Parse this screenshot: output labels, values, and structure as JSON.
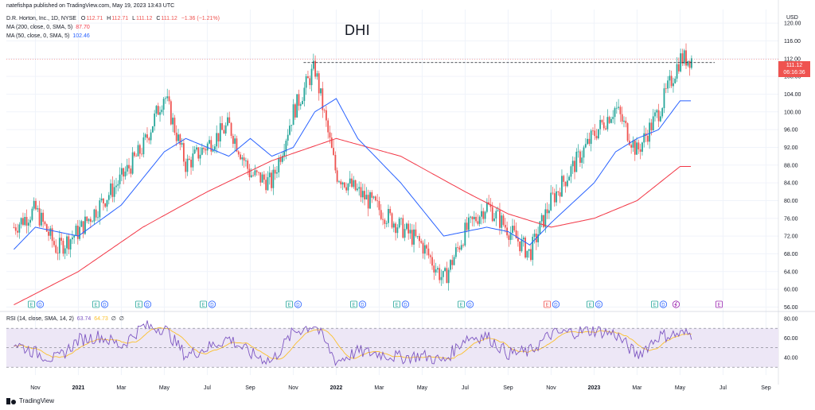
{
  "header": {
    "publisher": "natefishpa published on TradingView.com, May 19, 2023 13:43 UTC",
    "symbol_line": "D.R. Horton, Inc., 1D, NYSE",
    "ohlc": {
      "o_label": "O",
      "o": "112.71",
      "h_label": "H",
      "h": "112.71",
      "l_label": "L",
      "l": "111.12",
      "c_label": "C",
      "c": "111.12",
      "change": "−1.36 (−1.21%)"
    },
    "ma200_label": "MA (200, close, 0, SMA, 5)",
    "ma200_value": "87.70",
    "ma50_label": "MA (50, close, 0, SMA, 5)",
    "ma50_value": "102.46"
  },
  "title": "DHI",
  "price_tag": {
    "price": "111.12",
    "countdown": "06:16:36"
  },
  "rsi": {
    "label": "RSI (14, close, SMA, 14, 2)",
    "value": "63.74",
    "ma_value": "64.73",
    "extra1": "∅",
    "extra2": "∅"
  },
  "footer": {
    "brand": "TradingView"
  },
  "colors": {
    "up": "#26a69a",
    "down": "#ef5350",
    "ma200": "#f23645",
    "ma50": "#2962ff",
    "rsi_line": "#7e57c2",
    "rsi_ma": "#fbc02d",
    "rsi_band": "#ede7f6",
    "dividend": "#2962ff",
    "earnings_hist": "#26a69a",
    "earnings_future": "#ef5350",
    "split": "#9c27b0"
  },
  "chart_data": {
    "type": "candlestick",
    "price_axis": {
      "currency": "USD",
      "ticks": [
        56.0,
        60.0,
        64.0,
        68.0,
        72.0,
        76.0,
        80.0,
        84.0,
        88.0,
        92.0,
        96.0,
        100.0,
        104.0,
        108.0,
        112.0,
        116.0,
        120.0
      ],
      "range": [
        55,
        122
      ]
    },
    "time_axis": {
      "labels": [
        "Nov",
        "2021",
        "Mar",
        "May",
        "Jul",
        "Sep",
        "Nov",
        "2022",
        "Mar",
        "May",
        "Jul",
        "Sep",
        "Nov",
        "2023",
        "Mar",
        "May",
        "Jul",
        "Sep"
      ]
    },
    "resistance_level": 111.12,
    "price_path": [
      {
        "date": "Oct 2020",
        "price": 74
      },
      {
        "date": "Nov 2020",
        "price": 78
      },
      {
        "date": "Dec 2020",
        "price": 69
      },
      {
        "date": "Jan 2021",
        "price": 73
      },
      {
        "date": "Mar 2021",
        "price": 85
      },
      {
        "date": "Apr 2021",
        "price": 92
      },
      {
        "date": "May 2021",
        "price": 104
      },
      {
        "date": "Jun 2021",
        "price": 88
      },
      {
        "date": "Aug 2021",
        "price": 97
      },
      {
        "date": "Sep 2021",
        "price": 86
      },
      {
        "date": "Oct 2021",
        "price": 84
      },
      {
        "date": "Nov 2021",
        "price": 100
      },
      {
        "date": "Dec 2021",
        "price": 110
      },
      {
        "date": "Jan 2022",
        "price": 86
      },
      {
        "date": "Mar 2022",
        "price": 78
      },
      {
        "date": "May 2022",
        "price": 70
      },
      {
        "date": "Jun 2022",
        "price": 62
      },
      {
        "date": "Jul 2022",
        "price": 73
      },
      {
        "date": "Aug 2022",
        "price": 79
      },
      {
        "date": "Oct 2022",
        "price": 68
      },
      {
        "date": "Nov 2022",
        "price": 80
      },
      {
        "date": "Jan 2023",
        "price": 95
      },
      {
        "date": "Feb 2023",
        "price": 101
      },
      {
        "date": "Mar 2023",
        "price": 91
      },
      {
        "date": "Apr 2023",
        "price": 100
      },
      {
        "date": "May 2023",
        "price": 112
      }
    ],
    "ma200_path": [
      {
        "date": "Oct 2020",
        "value": 56.5
      },
      {
        "date": "Jan 2021",
        "value": 64
      },
      {
        "date": "Apr 2021",
        "value": 74
      },
      {
        "date": "Jul 2021",
        "value": 82
      },
      {
        "date": "Oct 2021",
        "value": 89
      },
      {
        "date": "Jan 2022",
        "value": 94
      },
      {
        "date": "Apr 2022",
        "value": 90
      },
      {
        "date": "Jul 2022",
        "value": 82
      },
      {
        "date": "Sep 2022",
        "value": 77
      },
      {
        "date": "Nov 2022",
        "value": 74
      },
      {
        "date": "Jan 2023",
        "value": 76
      },
      {
        "date": "Mar 2023",
        "value": 80
      },
      {
        "date": "May 2023",
        "value": 87.7
      }
    ],
    "ma50_path": [
      {
        "date": "Oct 2020",
        "value": 69
      },
      {
        "date": "Nov 2020",
        "value": 74
      },
      {
        "date": "Jan 2021",
        "value": 72
      },
      {
        "date": "Mar 2021",
        "value": 79
      },
      {
        "date": "May 2021",
        "value": 91
      },
      {
        "date": "Jun 2021",
        "value": 94
      },
      {
        "date": "Aug 2021",
        "value": 90
      },
      {
        "date": "Sep 2021",
        "value": 94
      },
      {
        "date": "Oct 2021",
        "value": 90
      },
      {
        "date": "Nov 2021",
        "value": 92
      },
      {
        "date": "Dec 2021",
        "value": 100
      },
      {
        "date": "Jan 2022",
        "value": 103
      },
      {
        "date": "Feb 2022",
        "value": 94
      },
      {
        "date": "Apr 2022",
        "value": 84
      },
      {
        "date": "May 2022",
        "value": 78
      },
      {
        "date": "Jun 2022",
        "value": 72
      },
      {
        "date": "Aug 2022",
        "value": 74
      },
      {
        "date": "Sep 2022",
        "value": 73
      },
      {
        "date": "Oct 2022",
        "value": 70
      },
      {
        "date": "Nov 2022",
        "value": 75
      },
      {
        "date": "Jan 2023",
        "value": 84
      },
      {
        "date": "Feb 2023",
        "value": 91
      },
      {
        "date": "Mar 2023",
        "value": 94
      },
      {
        "date": "Apr 2023",
        "value": 96
      },
      {
        "date": "May 2023",
        "value": 102.5
      }
    ],
    "rsi_axis": {
      "ticks": [
        40.0,
        60.0,
        80.0
      ],
      "upper_band": 70,
      "middle": 50,
      "lower_band": 30
    },
    "rsi_path": [
      {
        "date": "Oct 2020",
        "value": 55
      },
      {
        "date": "Nov 2020",
        "value": 45
      },
      {
        "date": "Dec 2020",
        "value": 38
      },
      {
        "date": "Jan 2021",
        "value": 58
      },
      {
        "date": "Feb 2021",
        "value": 62
      },
      {
        "date": "Mar 2021",
        "value": 52
      },
      {
        "date": "Apr 2021",
        "value": 72
      },
      {
        "date": "May 2021",
        "value": 70
      },
      {
        "date": "Jun 2021",
        "value": 42
      },
      {
        "date": "Jul 2021",
        "value": 50
      },
      {
        "date": "Aug 2021",
        "value": 60
      },
      {
        "date": "Sep 2021",
        "value": 44
      },
      {
        "date": "Oct 2021",
        "value": 36
      },
      {
        "date": "Nov 2021",
        "value": 66
      },
      {
        "date": "Dec 2021",
        "value": 74
      },
      {
        "date": "Jan 2022",
        "value": 36
      },
      {
        "date": "Feb 2022",
        "value": 46
      },
      {
        "date": "Mar 2022",
        "value": 44
      },
      {
        "date": "Apr 2022",
        "value": 40
      },
      {
        "date": "May 2022",
        "value": 42
      },
      {
        "date": "Jun 2022",
        "value": 36
      },
      {
        "date": "Jul 2022",
        "value": 60
      },
      {
        "date": "Aug 2022",
        "value": 62
      },
      {
        "date": "Sep 2022",
        "value": 44
      },
      {
        "date": "Oct 2022",
        "value": 46
      },
      {
        "date": "Nov 2022",
        "value": 64
      },
      {
        "date": "Dec 2022",
        "value": 66
      },
      {
        "date": "Jan 2023",
        "value": 68
      },
      {
        "date": "Feb 2023",
        "value": 64
      },
      {
        "date": "Mar 2023",
        "value": 42
      },
      {
        "date": "Apr 2023",
        "value": 62
      },
      {
        "date": "May 2023",
        "value": 64
      }
    ],
    "events": [
      {
        "date": "Nov 2020",
        "type": "E"
      },
      {
        "date": "Nov 2020",
        "type": "D"
      },
      {
        "date": "Feb 2021",
        "type": "E"
      },
      {
        "date": "Feb 2021",
        "type": "D"
      },
      {
        "date": "Apr 2021",
        "type": "E"
      },
      {
        "date": "Apr 2021",
        "type": "D"
      },
      {
        "date": "Jul 2021",
        "type": "E"
      },
      {
        "date": "Jul 2021",
        "type": "D"
      },
      {
        "date": "Nov 2021",
        "type": "E"
      },
      {
        "date": "Nov 2021",
        "type": "D"
      },
      {
        "date": "Feb 2022",
        "type": "E"
      },
      {
        "date": "Feb 2022",
        "type": "D"
      },
      {
        "date": "Apr 2022",
        "type": "E"
      },
      {
        "date": "Apr 2022",
        "type": "D"
      },
      {
        "date": "Jul 2022",
        "type": "E"
      },
      {
        "date": "Jul 2022",
        "type": "D"
      },
      {
        "date": "Nov 2022",
        "type": "E"
      },
      {
        "date": "Nov 2022",
        "type": "D"
      },
      {
        "date": "Jan 2023",
        "type": "E"
      },
      {
        "date": "Jan 2023",
        "type": "D"
      },
      {
        "date": "Apr 2023",
        "type": "E"
      },
      {
        "date": "Apr 2023",
        "type": "D"
      },
      {
        "date": "May 2023",
        "type": "split"
      },
      {
        "date": "Jul 2023",
        "type": "E"
      }
    ]
  }
}
